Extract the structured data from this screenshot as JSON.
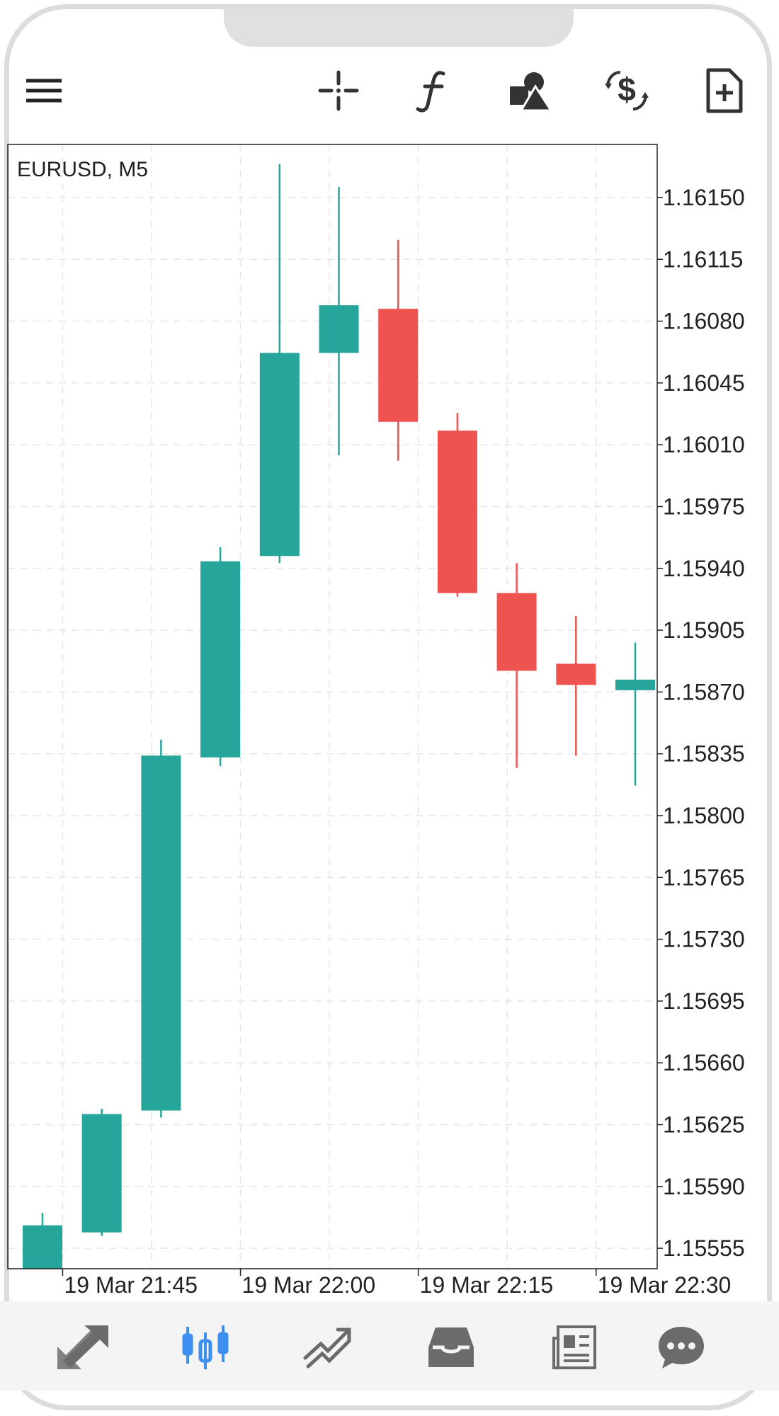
{
  "toolbar": {
    "icons": [
      "menu-icon",
      "crosshair-icon",
      "indicator-function-icon",
      "objects-icon",
      "trade-icon",
      "new-order-icon"
    ]
  },
  "chart_data": {
    "type": "candlestick",
    "title": "EURUSD, M5",
    "y_ticks": [
      "1.16150",
      "1.16115",
      "1.16080",
      "1.16045",
      "1.16010",
      "1.15975",
      "1.15940",
      "1.15905",
      "1.15870",
      "1.15835",
      "1.15800",
      "1.15765",
      "1.15730",
      "1.15695",
      "1.15660",
      "1.15625",
      "1.15590",
      "1.15555"
    ],
    "x_ticks": [
      "19 Mar 21:45",
      "19 Mar 22:00",
      "19 Mar 22:15",
      "19 Mar 22:30"
    ],
    "x_tick_indices": [
      0.34,
      3.34,
      6.34,
      9.34
    ],
    "ylim": [
      1.15545,
      1.16175
    ],
    "candles": [
      {
        "open": 1.15541,
        "high": 1.15575,
        "low": 1.15541,
        "close": 1.15568
      },
      {
        "open": 1.15564,
        "high": 1.15634,
        "low": 1.15562,
        "close": 1.15631
      },
      {
        "open": 1.15633,
        "high": 1.15843,
        "low": 1.15629,
        "close": 1.15834
      },
      {
        "open": 1.15833,
        "high": 1.15952,
        "low": 1.15828,
        "close": 1.15944
      },
      {
        "open": 1.15947,
        "high": 1.16169,
        "low": 1.15943,
        "close": 1.16062
      },
      {
        "open": 1.16062,
        "high": 1.16156,
        "low": 1.16004,
        "close": 1.16089
      },
      {
        "open": 1.16087,
        "high": 1.16126,
        "low": 1.16001,
        "close": 1.16023
      },
      {
        "open": 1.16018,
        "high": 1.16028,
        "low": 1.15924,
        "close": 1.15926
      },
      {
        "open": 1.15926,
        "high": 1.15943,
        "low": 1.15827,
        "close": 1.15882
      },
      {
        "open": 1.15886,
        "high": 1.15913,
        "low": 1.15834,
        "close": 1.15874
      },
      {
        "open": 1.15871,
        "high": 1.15898,
        "low": 1.15817,
        "close": 1.15877
      }
    ],
    "colors": {
      "bull": "#26a69a",
      "bear": "#ef5350",
      "grid": "#e6e6e6",
      "frame": "#222222",
      "text": "#222222"
    },
    "grid": true
  },
  "bottom_nav": {
    "items": [
      "trade-icon",
      "chart-icon",
      "history-icon",
      "mailbox-icon",
      "news-icon",
      "chat-icon"
    ],
    "active_color": "#3d8ff0",
    "inactive_color": "#6b6b6b"
  }
}
